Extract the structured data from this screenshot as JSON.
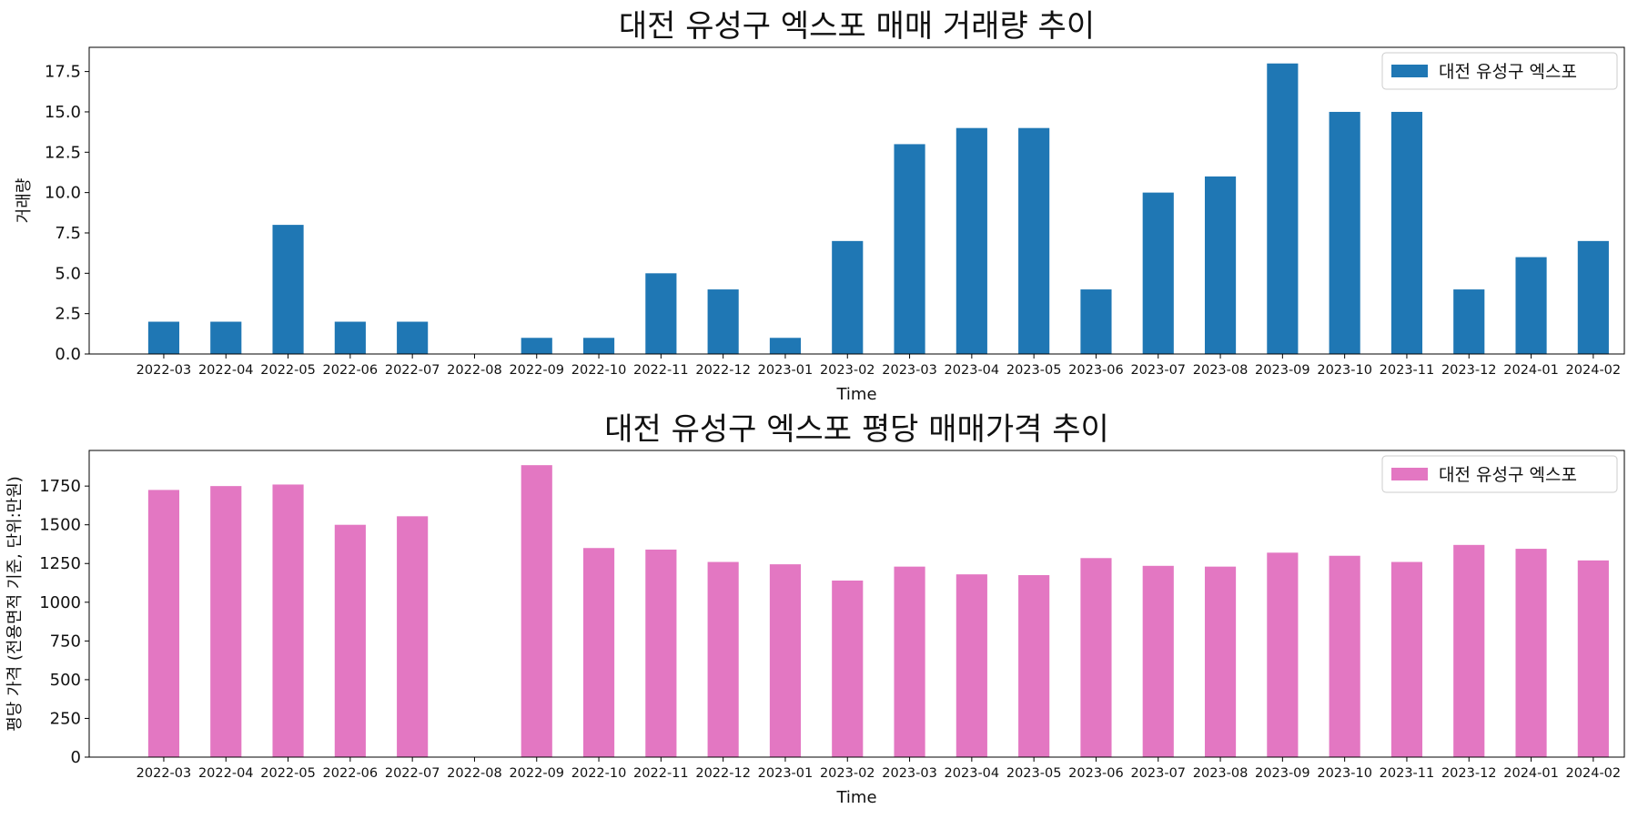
{
  "chart_data": [
    {
      "type": "bar",
      "title": "대전 유성구 엑스포 매매 거래량 추이",
      "xlabel": "Time",
      "ylabel": "거래량",
      "ylim": [
        0,
        19
      ],
      "yticks": [
        "0.0",
        "2.5",
        "5.0",
        "7.5",
        "10.0",
        "12.5",
        "15.0",
        "17.5"
      ],
      "ytick_values": [
        0,
        2.5,
        5,
        7.5,
        10,
        12.5,
        15,
        17.5
      ],
      "categories": [
        "2022-03",
        "2022-04",
        "2022-05",
        "2022-06",
        "2022-07",
        "2022-08",
        "2022-09",
        "2022-10",
        "2022-11",
        "2022-12",
        "2023-01",
        "2023-02",
        "2023-03",
        "2023-04",
        "2023-05",
        "2023-06",
        "2023-07",
        "2023-08",
        "2023-09",
        "2023-10",
        "2023-11",
        "2023-12",
        "2024-01",
        "2024-02"
      ],
      "series": [
        {
          "name": "대전 유성구 엑스포",
          "color": "#1f77b4",
          "values": [
            2,
            2,
            8,
            2,
            2,
            0,
            1,
            1,
            5,
            4,
            1,
            7,
            13,
            14,
            14,
            4,
            10,
            11,
            18,
            15,
            15,
            4,
            6,
            7
          ]
        }
      ],
      "legend": "top-right",
      "grid": false
    },
    {
      "type": "bar",
      "title": "대전 유성구 엑스포 평당 매매가격 추이",
      "xlabel": "Time",
      "ylabel": "평당 가격 (전용면적 기준, 단위:만원)",
      "ylim": [
        0,
        1980
      ],
      "yticks": [
        "0",
        "250",
        "500",
        "750",
        "1000",
        "1250",
        "1500",
        "1750"
      ],
      "ytick_values": [
        0,
        250,
        500,
        750,
        1000,
        1250,
        1500,
        1750
      ],
      "categories": [
        "2022-03",
        "2022-04",
        "2022-05",
        "2022-06",
        "2022-07",
        "2022-08",
        "2022-09",
        "2022-10",
        "2022-11",
        "2022-12",
        "2023-01",
        "2023-02",
        "2023-03",
        "2023-04",
        "2023-05",
        "2023-06",
        "2023-07",
        "2023-08",
        "2023-09",
        "2023-10",
        "2023-11",
        "2023-12",
        "2024-01",
        "2024-02"
      ],
      "series": [
        {
          "name": "대전 유성구 엑스포",
          "color": "#e377c2",
          "values": [
            1725,
            1750,
            1760,
            1500,
            1555,
            0,
            1885,
            1350,
            1340,
            1260,
            1245,
            1140,
            1230,
            1180,
            1175,
            1285,
            1235,
            1230,
            1320,
            1300,
            1260,
            1370,
            1345,
            1270
          ]
        }
      ],
      "legend": "top-right",
      "grid": false
    }
  ]
}
